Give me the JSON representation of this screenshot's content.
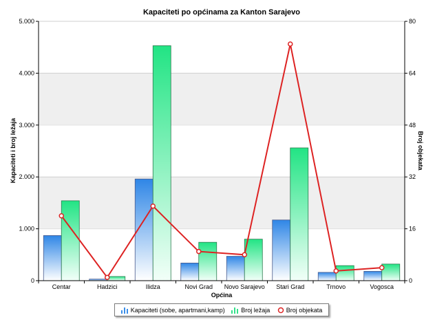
{
  "chart_data": {
    "type": "bar",
    "title": "Kapaciteti po općinama za Kanton Sarajevo",
    "xlabel": "Općina",
    "ylabel": "Kapaciteti i broj ležaja",
    "y2label": "Broj objekata",
    "categories": [
      "Centar",
      "Hadzici",
      "Ilidza",
      "Novi Grad",
      "Novo Sarajevo",
      "Stari Grad",
      "Trnovo",
      "Vogosca"
    ],
    "ylim": [
      0,
      5000
    ],
    "yticks": [
      "0",
      "1.000",
      "2.000",
      "3.000",
      "4.000",
      "5.000"
    ],
    "y2lim": [
      0,
      80
    ],
    "y2ticks": [
      "0",
      "16",
      "32",
      "48",
      "64",
      "80"
    ],
    "grid": "horizontal bands",
    "legend_position": "bottom",
    "series": [
      {
        "name": "Kapaciteti (sobe, apartmani,kamp)",
        "type": "bar",
        "axis": "left",
        "color": "#3a8ee8",
        "values": [
          870,
          30,
          1960,
          340,
          470,
          1170,
          160,
          180
        ]
      },
      {
        "name": "Broj ležaja",
        "type": "bar",
        "axis": "left",
        "color": "#33e08a",
        "values": [
          1540,
          80,
          4530,
          740,
          800,
          2560,
          290,
          320
        ]
      },
      {
        "name": "Broj objekata",
        "type": "line",
        "axis": "right",
        "color": "#dd2222",
        "values": [
          20,
          1,
          23,
          9,
          8,
          73,
          3,
          4
        ]
      }
    ]
  }
}
